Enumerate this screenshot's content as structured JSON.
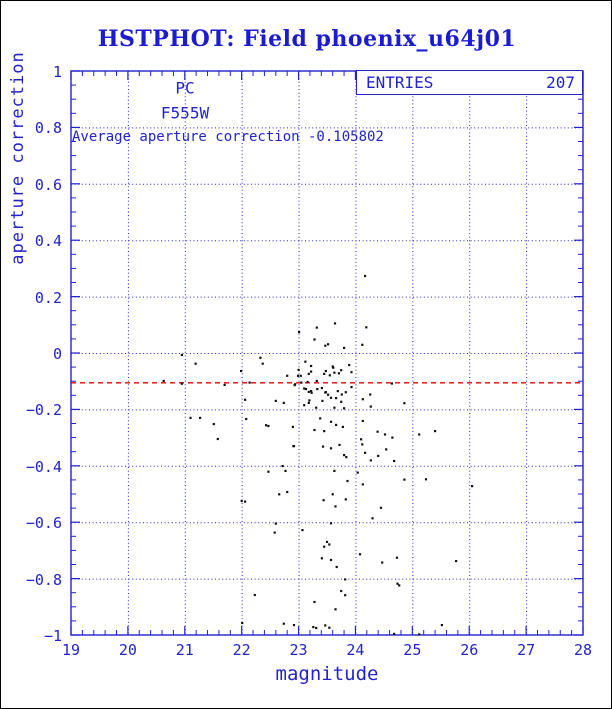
{
  "title": "HSTPHOT: Field phoenix_u64j01",
  "labels": {
    "detector": "PC",
    "filter": "F555W",
    "stats_text": "Average aperture correction -0.105802",
    "entries_label": "ENTRIES",
    "entries_value": "207",
    "xlabel": "magnitude",
    "ylabel": "aperture correction"
  },
  "colors": {
    "title_blue": "#1b1bd1",
    "plot_blue": "#2323cb",
    "mean_line_red": "#e80000",
    "point_black": "#111111",
    "background": "#ffffff"
  },
  "chart_data": {
    "type": "scatter",
    "title": "HSTPHOT: Field phoenix_u64j01",
    "xlabel": "magnitude",
    "ylabel": "aperture correction",
    "xlim": [
      19,
      28
    ],
    "ylim": [
      -1,
      1
    ],
    "x_ticks": [
      19,
      20,
      21,
      22,
      23,
      24,
      25,
      26,
      27,
      28
    ],
    "x_tick_labels": [
      "19",
      "20",
      "21",
      "22",
      "23",
      "24",
      "25",
      "26",
      "27",
      "28"
    ],
    "y_ticks": [
      1,
      0.8,
      0.6,
      0.4,
      0.2,
      0,
      -0.2,
      -0.4,
      -0.6,
      -0.8,
      -1
    ],
    "y_tick_labels": [
      "1",
      "0.8",
      "0.6",
      "0.4",
      "0.2",
      "0",
      "−0.2",
      "−0.4",
      "−0.6",
      "−0.8",
      "−1"
    ],
    "x_minor_step": 0.2,
    "y_minor_step": 0.05,
    "grid": true,
    "legend": "none",
    "entries": 207,
    "average_aperture_correction": -0.105802,
    "mean_line_y": -0.105802,
    "points": [
      [
        20.63,
        -0.099
      ],
      [
        20.95,
        -0.007
      ],
      [
        21.19,
        -0.038
      ],
      [
        20.95,
        -0.109
      ],
      [
        21.7,
        -0.113
      ],
      [
        21.1,
        -0.23
      ],
      [
        21.27,
        -0.23
      ],
      [
        21.51,
        -0.252
      ],
      [
        21.58,
        -0.305
      ],
      [
        21.99,
        -0.064
      ],
      [
        22.06,
        -0.166
      ],
      [
        22.14,
        -0.105
      ],
      [
        22.08,
        -0.234
      ],
      [
        22.33,
        -0.017
      ],
      [
        22.37,
        -0.038
      ],
      [
        22.43,
        -0.256
      ],
      [
        22.47,
        -0.259
      ],
      [
        22.6,
        -0.17
      ],
      [
        22.74,
        -0.177
      ],
      [
        22.8,
        -0.081
      ],
      [
        22.9,
        -0.262
      ],
      [
        22.94,
        -0.111
      ],
      [
        22.92,
        -0.33
      ],
      [
        22.72,
        -0.401
      ],
      [
        22.47,
        -0.421
      ],
      [
        22.77,
        -0.418
      ],
      [
        22.66,
        -0.501
      ],
      [
        22.8,
        -0.493
      ],
      [
        22.0,
        -0.525
      ],
      [
        22.06,
        -0.527
      ],
      [
        22.6,
        -0.605
      ],
      [
        22.58,
        -0.637
      ],
      [
        22.23,
        -0.858
      ],
      [
        22.01,
        -0.957
      ],
      [
        22.74,
        -0.96
      ],
      [
        22.92,
        -0.965
      ],
      [
        23.07,
        -0.628
      ],
      [
        24.17,
        0.273
      ],
      [
        23.64,
        0.105
      ],
      [
        23.32,
        0.09
      ],
      [
        23.01,
        0.074
      ],
      [
        24.19,
        0.091
      ],
      [
        23.28,
        0.048
      ],
      [
        23.47,
        0.026
      ],
      [
        23.52,
        0.031
      ],
      [
        23.8,
        0.018
      ],
      [
        24.12,
        0.029
      ],
      [
        23.12,
        -0.031
      ],
      [
        23.22,
        -0.046
      ],
      [
        23.6,
        -0.048
      ],
      [
        23.48,
        -0.064
      ],
      [
        23.63,
        -0.07
      ],
      [
        23.75,
        -0.061
      ],
      [
        23.89,
        -0.043
      ],
      [
        23.93,
        -0.068
      ],
      [
        23.22,
        -0.066
      ],
      [
        23.04,
        -0.081
      ],
      [
        23.16,
        -0.103
      ],
      [
        23.32,
        -0.099
      ],
      [
        23.1,
        -0.126
      ],
      [
        23.22,
        -0.135
      ],
      [
        23.41,
        -0.124
      ],
      [
        23.48,
        -0.139
      ],
      [
        23.69,
        -0.135
      ],
      [
        23.83,
        -0.139
      ],
      [
        23.93,
        -0.121
      ],
      [
        23.57,
        -0.159
      ],
      [
        23.42,
        -0.17
      ],
      [
        23.19,
        -0.168
      ],
      [
        23.75,
        -0.173
      ],
      [
        23.1,
        -0.185
      ],
      [
        23.31,
        -0.194
      ],
      [
        23.63,
        -0.194
      ],
      [
        23.8,
        -0.196
      ],
      [
        23.61,
        -0.052
      ],
      [
        23.55,
        -0.079
      ],
      [
        23.71,
        -0.072
      ],
      [
        23.45,
        -0.074
      ],
      [
        23.66,
        -0.16
      ],
      [
        23.52,
        -0.148
      ],
      [
        23.47,
        -0.14
      ],
      [
        23.76,
        -0.147
      ],
      [
        23.18,
        -0.074
      ],
      [
        23.18,
        -0.138
      ],
      [
        23.18,
        -0.177
      ],
      [
        23.0,
        -0.06
      ],
      [
        22.99,
        -0.081
      ],
      [
        23.05,
        -0.105
      ],
      [
        22.93,
        -0.114
      ],
      [
        23.13,
        -0.128
      ],
      [
        23.33,
        -0.128
      ],
      [
        23.23,
        -0.141
      ],
      [
        24.13,
        -0.164
      ],
      [
        24.26,
        -0.147
      ],
      [
        24.64,
        -0.108
      ],
      [
        24.86,
        -0.178
      ],
      [
        24.27,
        -0.19
      ],
      [
        23.38,
        -0.232
      ],
      [
        23.57,
        -0.244
      ],
      [
        23.66,
        -0.255
      ],
      [
        23.78,
        -0.262
      ],
      [
        23.45,
        -0.277
      ],
      [
        23.28,
        -0.273
      ],
      [
        24.13,
        -0.241
      ],
      [
        24.39,
        -0.279
      ],
      [
        24.52,
        -0.289
      ],
      [
        24.65,
        -0.3
      ],
      [
        24.1,
        -0.306
      ],
      [
        25.12,
        -0.289
      ],
      [
        25.4,
        -0.277
      ],
      [
        22.91,
        -0.33
      ],
      [
        23.43,
        -0.332
      ],
      [
        23.57,
        -0.338
      ],
      [
        23.72,
        -0.326
      ],
      [
        23.8,
        -0.362
      ],
      [
        23.84,
        -0.369
      ],
      [
        24.12,
        -0.324
      ],
      [
        24.17,
        -0.354
      ],
      [
        24.27,
        -0.381
      ],
      [
        24.4,
        -0.365
      ],
      [
        24.54,
        -0.342
      ],
      [
        24.68,
        -0.383
      ],
      [
        23.63,
        -0.418
      ],
      [
        24.04,
        -0.424
      ],
      [
        23.86,
        -0.454
      ],
      [
        24.13,
        -0.466
      ],
      [
        24.86,
        -0.449
      ],
      [
        25.24,
        -0.448
      ],
      [
        26.05,
        -0.472
      ],
      [
        23.6,
        -0.501
      ],
      [
        23.44,
        -0.522
      ],
      [
        23.65,
        -0.544
      ],
      [
        23.83,
        -0.519
      ],
      [
        24.45,
        -0.549
      ],
      [
        24.3,
        -0.586
      ],
      [
        23.57,
        -0.604
      ],
      [
        23.5,
        -0.67
      ],
      [
        23.45,
        -0.687
      ],
      [
        23.54,
        -0.679
      ],
      [
        23.41,
        -0.728
      ],
      [
        23.57,
        -0.734
      ],
      [
        23.67,
        -0.759
      ],
      [
        24.08,
        -0.714
      ],
      [
        24.47,
        -0.743
      ],
      [
        24.73,
        -0.726
      ],
      [
        25.77,
        -0.738
      ],
      [
        23.82,
        -0.803
      ],
      [
        24.74,
        -0.818
      ],
      [
        24.77,
        -0.824
      ],
      [
        23.75,
        -0.844
      ],
      [
        23.82,
        -0.859
      ],
      [
        23.28,
        -0.883
      ],
      [
        23.65,
        -0.909
      ],
      [
        23.26,
        -0.972
      ],
      [
        23.31,
        -0.975
      ],
      [
        23.47,
        -0.966
      ],
      [
        23.54,
        -0.974
      ],
      [
        24.68,
        -0.996
      ],
      [
        25.52,
        -0.965
      ],
      [
        25.12,
        -0.998
      ]
    ]
  }
}
